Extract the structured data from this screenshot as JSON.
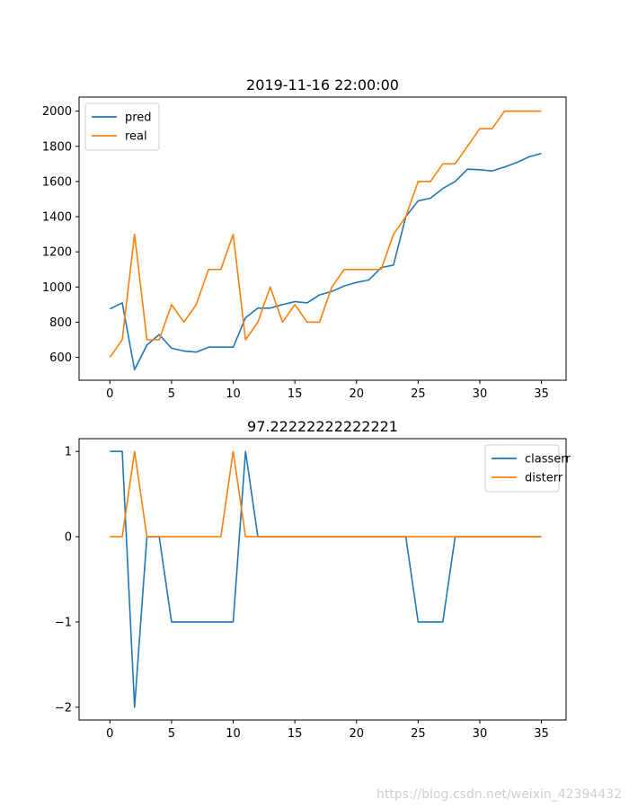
{
  "chart_data": [
    {
      "type": "line",
      "title": "2019-11-16 22:00:00",
      "xlabel": "",
      "ylabel": "",
      "xlim": [
        -2.5,
        37
      ],
      "ylim": [
        470,
        2080
      ],
      "xticks": [
        0,
        5,
        10,
        15,
        20,
        25,
        30,
        35
      ],
      "yticks": [
        600,
        800,
        1000,
        1200,
        1400,
        1600,
        1800,
        2000
      ],
      "legend_position": "upper-left",
      "x": [
        0,
        1,
        2,
        3,
        4,
        5,
        6,
        7,
        8,
        9,
        10,
        11,
        12,
        13,
        14,
        15,
        16,
        17,
        18,
        19,
        20,
        21,
        22,
        23,
        24,
        25,
        26,
        27,
        28,
        29,
        30,
        31,
        32,
        33,
        34,
        35
      ],
      "series": [
        {
          "name": "pred",
          "color": "#1f77b4",
          "values": [
            875,
            910,
            530,
            670,
            730,
            652,
            636,
            630,
            658,
            658,
            658,
            825,
            880,
            880,
            900,
            917,
            910,
            955,
            975,
            1006,
            1026,
            1040,
            1110,
            1125,
            1400,
            1490,
            1505,
            1560,
            1600,
            1670,
            1667,
            1660,
            1682,
            1708,
            1740,
            1760
          ]
        },
        {
          "name": "real",
          "color": "#ff7f0e",
          "values": [
            600,
            700,
            1300,
            700,
            700,
            900,
            800,
            900,
            1100,
            1100,
            1300,
            700,
            800,
            1000,
            800,
            900,
            800,
            800,
            1000,
            1100,
            1100,
            1100,
            1100,
            1300,
            1400,
            1600,
            1600,
            1700,
            1700,
            1800,
            1900,
            1900,
            2000,
            2000,
            2000,
            2000
          ]
        }
      ]
    },
    {
      "type": "line",
      "title": "97.22222222222221",
      "xlabel": "",
      "ylabel": "",
      "xlim": [
        -2.5,
        37
      ],
      "ylim": [
        -2.15,
        1.15
      ],
      "xticks": [
        0,
        5,
        10,
        15,
        20,
        25,
        30,
        35
      ],
      "yticks": [
        1,
        0,
        -1,
        -2
      ],
      "ytick_labels": [
        "1",
        "0",
        "−1",
        "−2"
      ],
      "legend_position": "upper-right",
      "x": [
        0,
        1,
        2,
        3,
        4,
        5,
        6,
        7,
        8,
        9,
        10,
        11,
        12,
        13,
        14,
        15,
        16,
        17,
        18,
        19,
        20,
        21,
        22,
        23,
        24,
        25,
        26,
        27,
        28,
        29,
        30,
        31,
        32,
        33,
        34,
        35
      ],
      "series": [
        {
          "name": "classerr",
          "color": "#1f77b4",
          "values": [
            1,
            1,
            -2,
            0,
            0,
            -1,
            -1,
            -1,
            -1,
            -1,
            -1,
            1,
            0,
            0,
            0,
            0,
            0,
            0,
            0,
            0,
            0,
            0,
            0,
            0,
            0,
            -1,
            -1,
            -1,
            0,
            0,
            0,
            0,
            0,
            0,
            0,
            0
          ]
        },
        {
          "name": "disterr",
          "color": "#ff7f0e",
          "values": [
            0,
            0,
            1,
            0,
            0,
            0,
            0,
            0,
            0,
            0,
            1,
            0,
            0,
            0,
            0,
            0,
            0,
            0,
            0,
            0,
            0,
            0,
            0,
            0,
            0,
            0,
            0,
            0,
            0,
            0,
            0,
            0,
            0,
            0,
            0,
            0
          ]
        }
      ]
    }
  ],
  "watermark": "https://blog.csdn.net/weixin_42394432"
}
